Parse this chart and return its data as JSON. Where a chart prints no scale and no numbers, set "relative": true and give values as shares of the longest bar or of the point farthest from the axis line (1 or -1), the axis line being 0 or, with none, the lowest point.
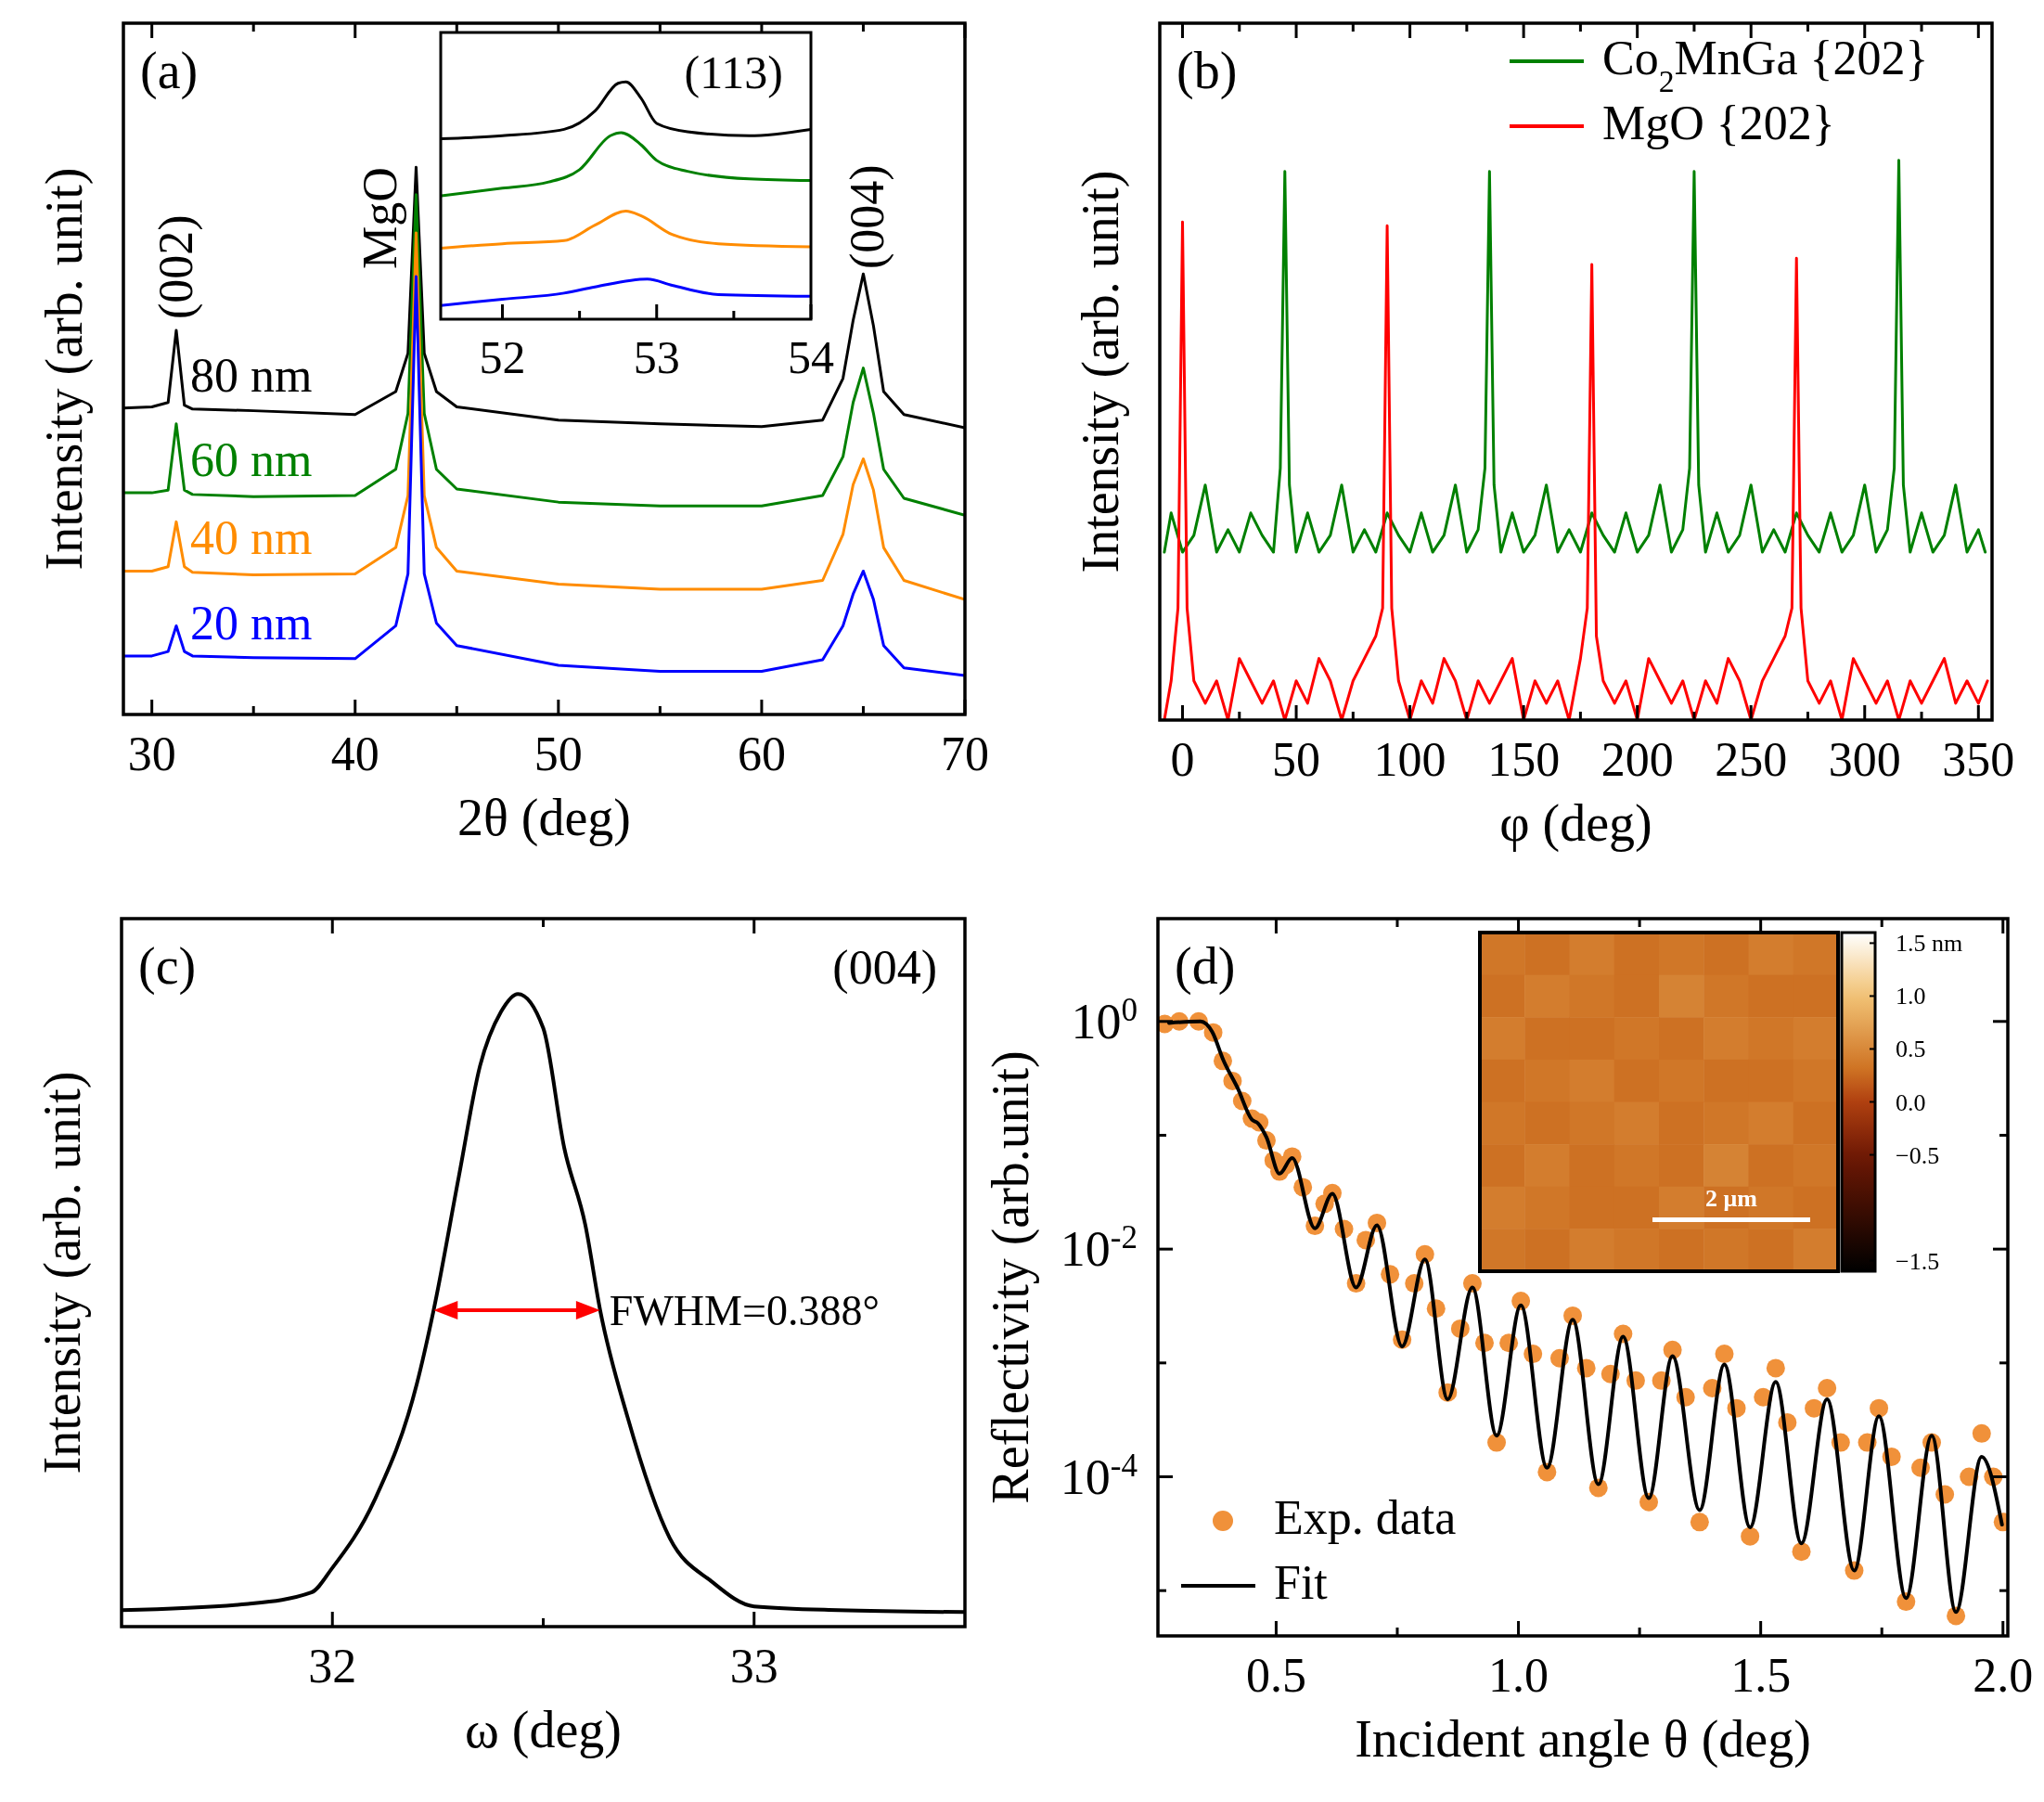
{
  "chart_data": [
    {
      "type": "line",
      "title": "(a)",
      "xlabel": "2θ (deg)",
      "ylabel": "Intensity (arb. unit)",
      "relative": true,
      "xlim": [
        28.6,
        70
      ],
      "xticks": [
        30,
        {
          "value": 35,
          "label": null
        },
        40,
        {
          "value": 45,
          "label": null
        },
        50,
        {
          "value": 55,
          "label": null
        },
        60,
        {
          "value": 65,
          "label": null
        },
        70
      ],
      "x": [
        28.6,
        30,
        30.8,
        31.2,
        31.6,
        32,
        35,
        40,
        42,
        42.6,
        43,
        43.4,
        44,
        45,
        50,
        55,
        60,
        63,
        64,
        64.5,
        65,
        65.5,
        66,
        67,
        70
      ],
      "annotations": [
        "(002)",
        "MgO",
        "(004)"
      ],
      "series": [
        {
          "name": "80 nm",
          "color": "#000000",
          "values": [
            0.56,
            0.562,
            0.57,
            0.702,
            0.565,
            0.558,
            0.555,
            0.548,
            0.59,
            0.66,
            1.0,
            0.66,
            0.59,
            0.562,
            0.538,
            0.531,
            0.526,
            0.538,
            0.614,
            0.72,
            0.805,
            0.71,
            0.59,
            0.548,
            0.524
          ]
        },
        {
          "name": "60 nm",
          "color": "#008000",
          "values": [
            0.405,
            0.405,
            0.41,
            0.531,
            0.41,
            0.402,
            0.398,
            0.4,
            0.448,
            0.55,
            0.95,
            0.55,
            0.448,
            0.412,
            0.388,
            0.381,
            0.381,
            0.4,
            0.471,
            0.57,
            0.633,
            0.55,
            0.448,
            0.395,
            0.364
          ]
        },
        {
          "name": "40 nm",
          "color": "#ff8c00",
          "values": [
            0.262,
            0.262,
            0.27,
            0.352,
            0.27,
            0.26,
            0.255,
            0.257,
            0.305,
            0.4,
            0.88,
            0.4,
            0.305,
            0.262,
            0.238,
            0.229,
            0.229,
            0.245,
            0.329,
            0.42,
            0.467,
            0.41,
            0.305,
            0.245,
            0.21
          ]
        },
        {
          "name": "20 nm",
          "color": "#0000ff",
          "values": [
            0.107,
            0.107,
            0.115,
            0.162,
            0.115,
            0.107,
            0.104,
            0.102,
            0.162,
            0.257,
            0.8,
            0.257,
            0.167,
            0.126,
            0.09,
            0.079,
            0.079,
            0.1,
            0.162,
            0.22,
            0.262,
            0.21,
            0.126,
            0.085,
            0.071
          ]
        }
      ]
    },
    {
      "type": "line",
      "relative": true,
      "xlim": [
        51.6,
        54
      ],
      "xticks": [
        52,
        {
          "value": 52.5,
          "label": null
        },
        53,
        {
          "value": 53.5,
          "label": null
        },
        54
      ],
      "annotations": [
        "(113)"
      ],
      "series": [
        {
          "color": "#000000",
          "x": [
            51.6,
            52,
            52.4,
            52.6,
            52.75,
            52.8,
            52.9,
            53,
            53.2,
            53.6,
            54
          ],
          "values": [
            0.76,
            0.773,
            0.8,
            0.877,
            0.994,
            1.0,
            0.93,
            0.825,
            0.79,
            0.773,
            0.8
          ]
        },
        {
          "color": "#008000",
          "x": [
            51.6,
            52,
            52.3,
            52.5,
            52.7,
            52.77,
            52.9,
            53,
            53.2,
            53.6,
            54
          ],
          "values": [
            0.52,
            0.552,
            0.578,
            0.63,
            0.773,
            0.786,
            0.734,
            0.669,
            0.623,
            0.591,
            0.584
          ]
        },
        {
          "color": "#ff8c00",
          "x": [
            51.6,
            52,
            52.4,
            52.6,
            52.8,
            52.9,
            53.1,
            53.4,
            54
          ],
          "values": [
            0.299,
            0.318,
            0.331,
            0.396,
            0.455,
            0.435,
            0.357,
            0.318,
            0.305
          ]
        },
        {
          "color": "#0000ff",
          "x": [
            51.6,
            52,
            52.4,
            52.6,
            52.94,
            53.1,
            53.4,
            54
          ],
          "values": [
            0.058,
            0.084,
            0.11,
            0.136,
            0.169,
            0.143,
            0.104,
            0.097
          ]
        }
      ]
    },
    {
      "type": "line",
      "title": "(b)",
      "xlabel": "φ (deg)",
      "ylabel": "Intensity (arb. unit)",
      "relative": true,
      "legend": "top right",
      "xlim": [
        -10,
        356
      ],
      "xticks": [
        0,
        {
          "value": 25,
          "label": null
        },
        50,
        {
          "value": 75,
          "label": null
        },
        100,
        {
          "value": 125,
          "label": null
        },
        150,
        {
          "value": 175,
          "label": null
        },
        200,
        {
          "value": 225,
          "label": null
        },
        250,
        {
          "value": 275,
          "label": null
        },
        300,
        {
          "value": 325,
          "label": null
        },
        350
      ],
      "series": [
        {
          "name": "Co$_{2}$MnGa {202}",
          "color": "#008000",
          "x": [
            -8,
            -5,
            0,
            5,
            10,
            15,
            20,
            25,
            30,
            35,
            40,
            43,
            45,
            47,
            50,
            55,
            60,
            65,
            70,
            75,
            80,
            85,
            90,
            95,
            100,
            105,
            110,
            115,
            120,
            125,
            130,
            133,
            135,
            137,
            140,
            145,
            150,
            155,
            160,
            165,
            170,
            175,
            180,
            185,
            190,
            195,
            200,
            205,
            210,
            215,
            220,
            223,
            225,
            227,
            230,
            235,
            240,
            245,
            250,
            255,
            260,
            265,
            270,
            275,
            280,
            285,
            290,
            295,
            300,
            305,
            310,
            313,
            315,
            317,
            320,
            325,
            330,
            335,
            340,
            345,
            350,
            353
          ],
          "values": [
            0.3,
            0.37,
            0.3,
            0.33,
            0.42,
            0.3,
            0.34,
            0.3,
            0.37,
            0.33,
            0.3,
            0.45,
            0.98,
            0.42,
            0.3,
            0.37,
            0.3,
            0.33,
            0.42,
            0.3,
            0.34,
            0.3,
            0.37,
            0.33,
            0.3,
            0.37,
            0.3,
            0.33,
            0.42,
            0.3,
            0.34,
            0.45,
            0.98,
            0.42,
            0.3,
            0.37,
            0.3,
            0.33,
            0.42,
            0.3,
            0.34,
            0.3,
            0.37,
            0.33,
            0.3,
            0.37,
            0.3,
            0.33,
            0.42,
            0.3,
            0.34,
            0.45,
            0.98,
            0.42,
            0.3,
            0.37,
            0.3,
            0.33,
            0.42,
            0.3,
            0.34,
            0.3,
            0.37,
            0.33,
            0.3,
            0.37,
            0.3,
            0.33,
            0.42,
            0.3,
            0.34,
            0.45,
            1.0,
            0.42,
            0.3,
            0.37,
            0.3,
            0.33,
            0.42,
            0.3,
            0.34,
            0.3
          ]
        },
        {
          "name": "MgO {202}",
          "color": "#ff0000",
          "x": [
            -8,
            -5,
            -2,
            0,
            2,
            5,
            10,
            15,
            20,
            25,
            30,
            35,
            40,
            45,
            50,
            55,
            60,
            65,
            70,
            75,
            80,
            85,
            88,
            90,
            92,
            95,
            100,
            105,
            110,
            115,
            120,
            125,
            130,
            135,
            140,
            145,
            150,
            155,
            160,
            165,
            170,
            175,
            178,
            180,
            182,
            185,
            190,
            195,
            200,
            205,
            210,
            215,
            220,
            225,
            230,
            235,
            240,
            245,
            250,
            255,
            260,
            265,
            268,
            270,
            272,
            275,
            280,
            285,
            290,
            295,
            300,
            305,
            310,
            315,
            320,
            325,
            330,
            335,
            340,
            345,
            350,
            354
          ],
          "values": [
            0.0,
            0.07,
            0.2,
            0.89,
            0.2,
            0.07,
            0.03,
            0.07,
            0.0,
            0.11,
            0.07,
            0.03,
            0.07,
            0.0,
            0.07,
            0.03,
            0.11,
            0.07,
            0.0,
            0.07,
            0.11,
            0.15,
            0.2,
            0.883,
            0.2,
            0.07,
            0.0,
            0.07,
            0.03,
            0.11,
            0.07,
            0.0,
            0.07,
            0.03,
            0.07,
            0.11,
            0.0,
            0.07,
            0.03,
            0.07,
            0.0,
            0.11,
            0.2,
            0.814,
            0.15,
            0.07,
            0.03,
            0.07,
            0.0,
            0.11,
            0.07,
            0.03,
            0.07,
            0.0,
            0.07,
            0.03,
            0.11,
            0.07,
            0.0,
            0.07,
            0.11,
            0.15,
            0.2,
            0.825,
            0.2,
            0.07,
            0.03,
            0.07,
            0.0,
            0.11,
            0.07,
            0.03,
            0.07,
            0.0,
            0.07,
            0.03,
            0.07,
            0.11,
            0.03,
            0.07,
            0.03,
            0.07
          ]
        }
      ]
    },
    {
      "type": "line",
      "title": "(c)",
      "xlabel": "ω (deg)",
      "ylabel": "Intensity (arb. unit)",
      "relative": true,
      "xlim": [
        31.5,
        33.5
      ],
      "xticks": [
        32,
        {
          "value": 32.5,
          "label": null
        },
        33
      ],
      "annotations": [
        "(004)",
        {
          "text": "FWHM=0.388°",
          "x": 32.635,
          "y": 0.5
        }
      ],
      "series": [
        {
          "color": "#000000",
          "x": [
            31.5,
            31.8,
            31.95,
            32.0,
            32.1,
            32.2,
            32.24,
            32.3,
            32.35,
            32.4,
            32.44,
            32.5,
            32.55,
            32.6,
            32.635,
            32.7,
            32.8,
            32.9,
            33.0,
            33.2,
            33.5
          ],
          "values": [
            0.026,
            0.036,
            0.054,
            0.093,
            0.2,
            0.383,
            0.5,
            0.712,
            0.886,
            0.972,
            1.0,
            0.946,
            0.756,
            0.634,
            0.5,
            0.331,
            0.14,
            0.071,
            0.032,
            0.026,
            0.023
          ]
        }
      ]
    },
    {
      "type": "line",
      "title": "(d)",
      "xlabel": "Incident angle θ (deg)",
      "ylabel": "Reflectivity (arb.unit)",
      "log": "y",
      "legend": "bottom left",
      "xlim": [
        0.256,
        2.01
      ],
      "xticks": [
        0.5,
        {
          "value": 0.75,
          "label": null
        },
        {
          "value": 1,
          "label": "1.0"
        },
        {
          "value": 1.25,
          "label": null
        },
        1.5,
        {
          "value": 1.75,
          "label": null
        },
        {
          "value": 2,
          "label": "2.0"
        }
      ],
      "ylim": [
        4e-06,
        8
      ],
      "yticks": [
        {
          "value": 1e-05,
          "label": null
        },
        {
          "value": 0.0001,
          "label": "10$^{-4}$"
        },
        {
          "value": 0.001,
          "label": null
        },
        {
          "value": 0.01,
          "label": "10$^{-2}$"
        },
        {
          "value": 0.1,
          "label": null
        },
        {
          "value": 1,
          "label": "10$^{0}$"
        }
      ],
      "series": [
        {
          "name": "Exp. data",
          "type": "scatter",
          "marker": "circle",
          "color": "#f0913a",
          "x": [
            0.27,
            0.3,
            0.34,
            0.37,
            0.39,
            0.41,
            0.43,
            0.45,
            0.465,
            0.48,
            0.495,
            0.507,
            0.52,
            0.533,
            0.555,
            0.58,
            0.6,
            0.616,
            0.64,
            0.665,
            0.685,
            0.708,
            0.735,
            0.76,
            0.785,
            0.807,
            0.83,
            0.854,
            0.88,
            0.905,
            0.93,
            0.955,
            0.98,
            1.005,
            1.03,
            1.059,
            1.085,
            1.112,
            1.14,
            1.165,
            1.19,
            1.216,
            1.242,
            1.269,
            1.295,
            1.318,
            1.345,
            1.374,
            1.4,
            1.425,
            1.45,
            1.478,
            1.505,
            1.531,
            1.555,
            1.584,
            1.61,
            1.637,
            1.665,
            1.693,
            1.72,
            1.744,
            1.77,
            1.8,
            1.83,
            1.853,
            1.88,
            1.903,
            1.93,
            1.956,
            1.98,
            2.0
          ],
          "values": [
            0.95,
            1.0,
            1.0,
            0.8,
            0.45,
            0.3,
            0.2,
            0.14,
            0.13,
            0.09,
            0.06,
            0.048,
            0.055,
            0.065,
            0.035,
            0.016,
            0.025,
            0.031,
            0.015,
            0.005,
            0.012,
            0.017,
            0.006,
            0.0016,
            0.005,
            0.009,
            0.003,
            0.00055,
            0.002,
            0.005,
            0.0015,
            0.0002,
            0.0015,
            0.0035,
            0.0012,
            0.00011,
            0.0011,
            0.0026,
            0.0009,
            8e-05,
            0.0008,
            0.0018,
            0.0007,
            6e-05,
            0.0007,
            0.0013,
            0.0005,
            4e-05,
            0.0006,
            0.0012,
            0.0004,
            3e-05,
            0.0005,
            0.0009,
            0.0003,
            2.2e-05,
            0.0004,
            0.0006,
            0.0002,
            1.5e-05,
            0.0002,
            0.0004,
            0.00015,
            8e-06,
            0.00012,
            0.0002,
            7e-05,
            6e-06,
            0.0001,
            0.00024,
            0.0001,
            4e-05
          ]
        },
        {
          "name": "Fit",
          "color": "#000000",
          "x": [
            0.279,
            0.344,
            0.368,
            0.391,
            0.421,
            0.45,
            0.462,
            0.48,
            0.507,
            0.533,
            0.58,
            0.616,
            0.665,
            0.708,
            0.76,
            0.807,
            0.854,
            0.905,
            0.955,
            1.005,
            1.059,
            1.112,
            1.165,
            1.216,
            1.269,
            1.318,
            1.374,
            1.425,
            1.478,
            1.531,
            1.584,
            1.637,
            1.693,
            1.744,
            1.8,
            1.853,
            1.903,
            1.956,
            1.998
          ],
          "values": [
            0.97,
            1.0,
            0.81,
            0.457,
            0.257,
            0.137,
            0.128,
            0.096,
            0.046,
            0.063,
            0.0152,
            0.0306,
            0.0046,
            0.0162,
            0.0014,
            0.0081,
            0.00048,
            0.0046,
            0.00023,
            0.0032,
            0.00012,
            0.0024,
            8.6e-05,
            0.0017,
            6.5e-05,
            0.00115,
            5.1e-05,
            0.00097,
            3.6e-05,
            0.00068,
            2.6e-05,
            0.00048,
            1.5e-05,
            0.00034,
            8.6e-06,
            0.00023,
            6.5e-06,
            0.00015,
            3.8e-05
          ]
        }
      ]
    },
    {
      "type": "heatmap",
      "categories": [
        null,
        null,
        null,
        null,
        null,
        null,
        null,
        null
      ],
      "y_categories": [
        null,
        null,
        null,
        null,
        null,
        null,
        null,
        null
      ],
      "cells": [
        [
          0.35,
          0.3,
          0.4,
          0.3,
          0.35,
          0.3,
          0.4,
          0.35
        ],
        [
          0.3,
          0.4,
          0.35,
          0.3,
          0.45,
          0.35,
          0.3,
          0.3
        ],
        [
          0.4,
          0.3,
          0.3,
          0.35,
          0.3,
          0.4,
          0.35,
          0.4
        ],
        [
          0.3,
          0.35,
          0.4,
          0.3,
          0.35,
          0.3,
          0.3,
          0.35
        ],
        [
          0.35,
          0.3,
          0.35,
          0.4,
          0.3,
          0.35,
          0.4,
          0.3
        ],
        [
          0.3,
          0.4,
          0.3,
          0.35,
          0.3,
          0.45,
          0.3,
          0.35
        ],
        [
          0.4,
          0.35,
          0.3,
          0.3,
          0.4,
          0.3,
          0.35,
          0.3
        ],
        [
          0.35,
          0.3,
          0.4,
          0.35,
          0.3,
          0.35,
          0.3,
          0.4
        ]
      ],
      "clim": [
        -1.6,
        1.6
      ],
      "cticks": [
        {
          "value": 1.5,
          "label": "1.5 nm"
        },
        {
          "value": 1,
          "label": "1.0"
        },
        0.5,
        {
          "value": 0,
          "label": "0.0"
        },
        {
          "value": -0.5,
          "label": "−0.5"
        },
        {
          "value": -1.5,
          "label": "−1.5"
        }
      ],
      "annotations": [
        "2 μm"
      ]
    }
  ]
}
